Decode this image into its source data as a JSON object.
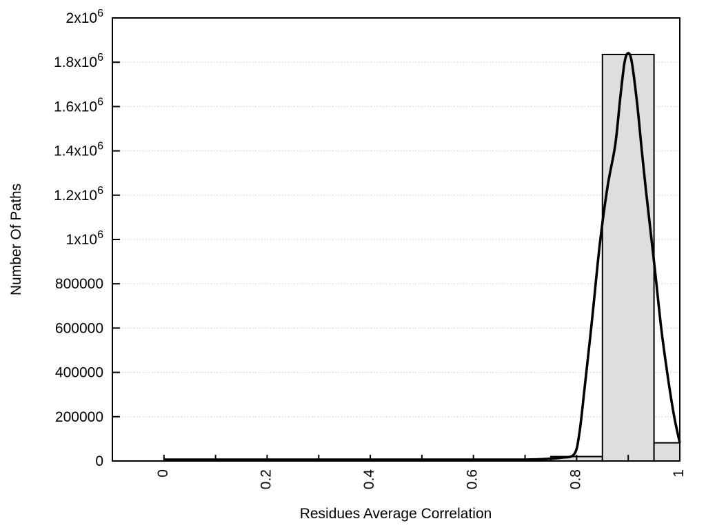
{
  "chart_data": {
    "type": "bar",
    "subtype": "histogram-with-smoothed-curve",
    "title": "",
    "xlabel": "Residues Average Correlation",
    "ylabel": "Number Of Paths",
    "xlim": [
      -0.1,
      1.0
    ],
    "ylim": [
      0,
      2000000
    ],
    "grid": "horizontal dotted lines at labeled y ticks",
    "legend": "none",
    "bars": [
      {
        "x0": 0.75,
        "x1": 0.85,
        "value": 20000
      },
      {
        "x0": 0.85,
        "x1": 0.95,
        "value": 1835000
      },
      {
        "x0": 0.95,
        "x1": 1.0,
        "value": 82000
      }
    ],
    "curve_series": {
      "name": "smoothed-distribution-curve",
      "points": [
        [
          0.0,
          2000
        ],
        [
          0.1,
          2000
        ],
        [
          0.2,
          2000
        ],
        [
          0.3,
          2000
        ],
        [
          0.4,
          2000
        ],
        [
          0.5,
          2000
        ],
        [
          0.6,
          2500
        ],
        [
          0.65,
          3500
        ],
        [
          0.7,
          5500
        ],
        [
          0.74,
          9000
        ],
        [
          0.77,
          15000
        ],
        [
          0.795,
          30000
        ],
        [
          0.805,
          120000
        ],
        [
          0.815,
          320000
        ],
        [
          0.83,
          640000
        ],
        [
          0.845,
          980000
        ],
        [
          0.86,
          1240000
        ],
        [
          0.875,
          1430000
        ],
        [
          0.885,
          1650000
        ],
        [
          0.893,
          1800000
        ],
        [
          0.9,
          1841000
        ],
        [
          0.907,
          1800000
        ],
        [
          0.917,
          1620000
        ],
        [
          0.926,
          1410000
        ],
        [
          0.934,
          1230000
        ],
        [
          0.95,
          900000
        ],
        [
          0.965,
          580000
        ],
        [
          0.98,
          330000
        ],
        [
          0.99,
          190000
        ],
        [
          1.0,
          82000
        ]
      ]
    },
    "y_ticks": [
      {
        "v": 0,
        "label": "0"
      },
      {
        "v": 200000,
        "label": "200000"
      },
      {
        "v": 400000,
        "label": "400000"
      },
      {
        "v": 600000,
        "label": "600000"
      },
      {
        "v": 800000,
        "label": "800000"
      },
      {
        "v": 1000000,
        "label": "1x10",
        "sup": "6"
      },
      {
        "v": 1200000,
        "label": "1.2x10",
        "sup": "6"
      },
      {
        "v": 1400000,
        "label": "1.4x10",
        "sup": "6"
      },
      {
        "v": 1600000,
        "label": "1.6x10",
        "sup": "6"
      },
      {
        "v": 1800000,
        "label": "1.8x10",
        "sup": "6"
      },
      {
        "v": 2000000,
        "label": "2x10",
        "sup": "6"
      }
    ],
    "x_ticks": [
      {
        "v": 0,
        "label": "0"
      },
      {
        "v": 0.1,
        "label": ""
      },
      {
        "v": 0.2,
        "label": "0.2"
      },
      {
        "v": 0.3,
        "label": ""
      },
      {
        "v": 0.4,
        "label": "0.4"
      },
      {
        "v": 0.5,
        "label": ""
      },
      {
        "v": 0.6,
        "label": "0.6"
      },
      {
        "v": 0.7,
        "label": ""
      },
      {
        "v": 0.8,
        "label": "0.8"
      },
      {
        "v": 0.9,
        "label": ""
      },
      {
        "v": 1,
        "label": "1"
      }
    ],
    "colors": {
      "background": "#ffffff",
      "bar_fill": "#dedede",
      "bar_stroke": "#000000",
      "curve": "#000000",
      "grid": "#c6c6c6",
      "frame": "#000000",
      "text": "#000000"
    }
  }
}
